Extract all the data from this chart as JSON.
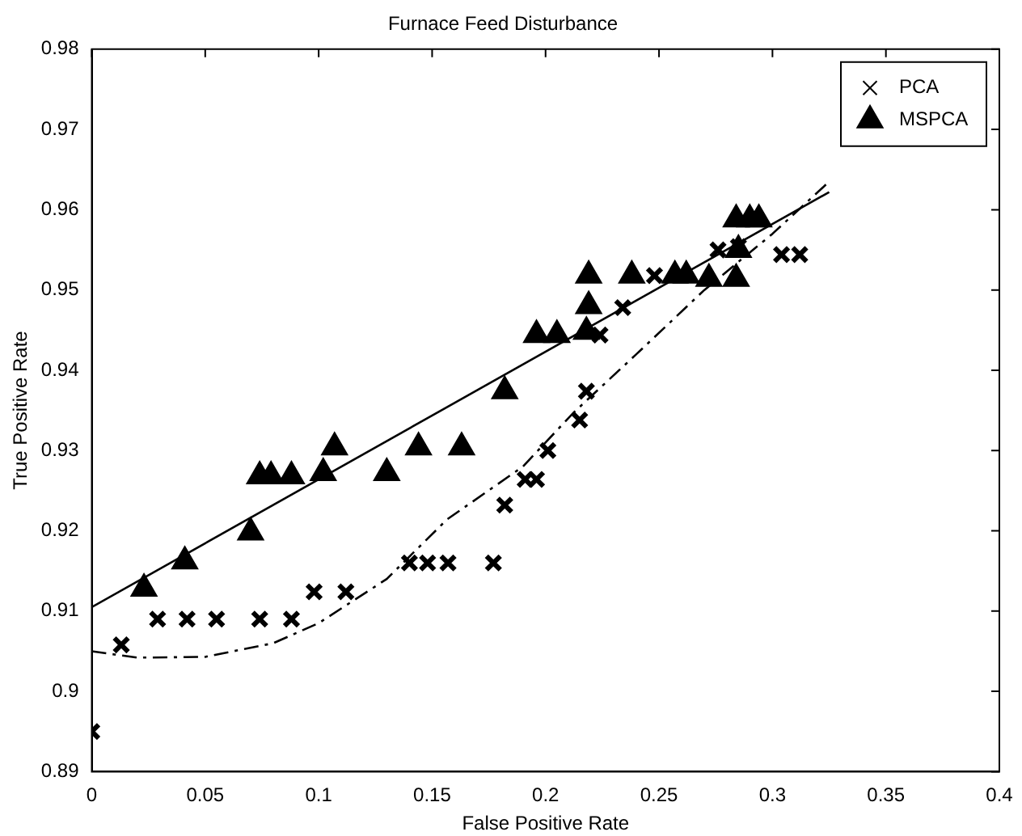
{
  "chart_data": {
    "type": "scatter",
    "title": "Furnace Feed Disturbance",
    "xlabel": "False Positive Rate",
    "ylabel": "True Positive Rate",
    "xlim": [
      0,
      0.4
    ],
    "xticks": [
      0,
      0.05,
      0.1,
      0.15,
      0.2,
      0.25,
      0.3,
      0.35,
      0.4
    ],
    "ylim": [
      0.89,
      0.98
    ],
    "yticks": [
      0.89,
      0.9,
      0.91,
      0.92,
      0.93,
      0.94,
      0.95,
      0.96,
      0.97,
      0.98
    ],
    "grid": false,
    "legend": "top right",
    "series": [
      {
        "name": "PCA",
        "type": "scatter",
        "marker": "cross",
        "color": "#000000",
        "x": [
          0,
          0.013,
          0.029,
          0.042,
          0.055,
          0.074,
          0.088,
          0.098,
          0.112,
          0.14,
          0.148,
          0.157,
          0.177,
          0.182,
          0.191,
          0.196,
          0.201,
          0.215,
          0.218,
          0.224,
          0.234,
          0.248,
          0.276,
          0.285,
          0.304,
          0.312
        ],
        "values": [
          0.895,
          0.9058,
          0.909,
          0.909,
          0.909,
          0.909,
          0.909,
          0.9124,
          0.9124,
          0.916,
          0.916,
          0.916,
          0.916,
          0.9232,
          0.9264,
          0.9264,
          0.93,
          0.9338,
          0.9374,
          0.9444,
          0.9478,
          0.9518,
          0.955,
          0.9554,
          0.9544,
          0.9544
        ]
      },
      {
        "name": "MSPCA",
        "type": "scatter",
        "marker": "triangle",
        "color": "#000000",
        "x": [
          0.023,
          0.041,
          0.07,
          0.074,
          0.079,
          0.088,
          0.102,
          0.107,
          0.13,
          0.144,
          0.163,
          0.182,
          0.196,
          0.205,
          0.218,
          0.219,
          0.219,
          0.238,
          0.257,
          0.262,
          0.272,
          0.284,
          0.285,
          0.284,
          0.29,
          0.294
        ],
        "values": [
          0.9128,
          0.9162,
          0.9198,
          0.9268,
          0.9268,
          0.9268,
          0.9272,
          0.9304,
          0.9272,
          0.9304,
          0.9304,
          0.9374,
          0.9444,
          0.9444,
          0.9448,
          0.948,
          0.9518,
          0.9518,
          0.9518,
          0.9518,
          0.9514,
          0.9514,
          0.955,
          0.9588,
          0.9588,
          0.9588
        ]
      },
      {
        "type": "line",
        "marker": "none",
        "line_style": "solid",
        "color": "#000000",
        "x": [
          0,
          0.325
        ],
        "values": [
          0.9105,
          0.9622
        ]
      },
      {
        "type": "line",
        "marker": "none",
        "line_style": "dashdot",
        "color": "#000000",
        "x": [
          0,
          0.02,
          0.05,
          0.08,
          0.1,
          0.13,
          0.1565,
          0.19,
          0.2126,
          0.24,
          0.27,
          0.3,
          0.325
        ],
        "values": [
          0.905,
          0.9042,
          0.9043,
          0.906,
          0.9085,
          0.914,
          0.9214,
          0.928,
          0.9348,
          0.942,
          0.95,
          0.957,
          0.9635
        ]
      }
    ]
  }
}
